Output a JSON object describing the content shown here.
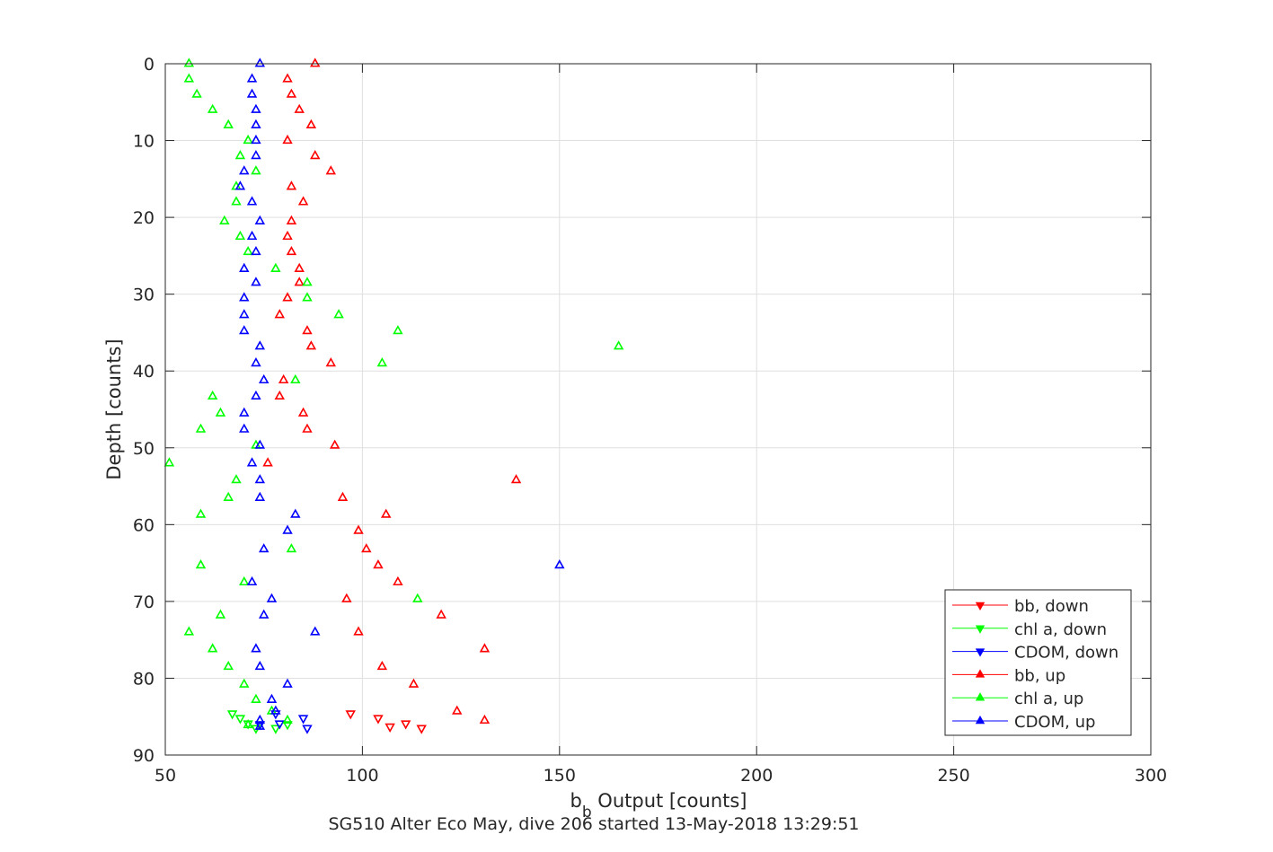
{
  "chart_data": {
    "type": "scatter",
    "title": "",
    "xlabel_main": "b",
    "xlabel_sub": "b",
    "xlabel_rest": " Output [counts]",
    "ylabel": "Depth [counts]",
    "caption": "SG510 Alter Eco May, dive 206 started 13-May-2018 13:29:51",
    "xlim": [
      50,
      300
    ],
    "ylim": [
      0,
      90
    ],
    "y_reversed": true,
    "grid": true,
    "legend_position": "bottom-right",
    "x_ticks": [
      "50",
      "100",
      "150",
      "200",
      "250",
      "300"
    ],
    "y_ticks": [
      "0",
      "10",
      "20",
      "30",
      "40",
      "50",
      "60",
      "70",
      "80",
      "90"
    ],
    "series": [
      {
        "name": "bb, down",
        "color": "#ff0000",
        "marker": "triangle-down",
        "points": [
          [
            97,
            84.6
          ],
          [
            104,
            85.2
          ],
          [
            111,
            85.9
          ],
          [
            107,
            86.3
          ],
          [
            115,
            86.5
          ]
        ]
      },
      {
        "name": "chl a, down",
        "color": "#00ff00",
        "marker": "triangle-down",
        "points": [
          [
            67,
            84.6
          ],
          [
            69,
            85.2
          ],
          [
            71,
            85.9
          ],
          [
            73,
            86.5
          ],
          [
            78,
            86.5
          ],
          [
            81,
            86
          ]
        ]
      },
      {
        "name": "CDOM, down",
        "color": "#0000ff",
        "marker": "triangle-down",
        "points": [
          [
            78,
            84.6
          ],
          [
            85,
            85.2
          ],
          [
            79,
            85.9
          ],
          [
            86,
            86.5
          ],
          [
            74,
            86
          ]
        ]
      },
      {
        "name": "bb, up",
        "color": "#ff0000",
        "marker": "triangle-up",
        "points": [
          [
            88,
            0
          ],
          [
            81,
            2
          ],
          [
            82,
            4
          ],
          [
            84,
            6
          ],
          [
            87,
            8
          ],
          [
            81,
            10
          ],
          [
            88,
            12
          ],
          [
            92,
            14
          ],
          [
            82,
            16
          ],
          [
            85,
            18
          ],
          [
            82,
            20.5
          ],
          [
            81,
            22.5
          ],
          [
            82,
            24.5
          ],
          [
            84,
            26.7
          ],
          [
            84,
            28.5
          ],
          [
            81,
            30.5
          ],
          [
            79,
            32.7
          ],
          [
            86,
            34.8
          ],
          [
            87,
            36.8
          ],
          [
            92,
            39
          ],
          [
            80,
            41.2
          ],
          [
            79,
            43.3
          ],
          [
            85,
            45.5
          ],
          [
            86,
            47.6
          ],
          [
            93,
            49.7
          ],
          [
            76,
            52
          ],
          [
            139,
            54.2
          ],
          [
            95,
            56.5
          ],
          [
            106,
            58.7
          ],
          [
            99,
            60.8
          ],
          [
            101,
            63.2
          ],
          [
            104,
            65.3
          ],
          [
            109,
            67.5
          ],
          [
            96,
            69.7
          ],
          [
            120,
            71.8
          ],
          [
            99,
            74
          ],
          [
            131,
            76.2
          ],
          [
            105,
            78.5
          ],
          [
            113,
            80.8
          ],
          [
            124,
            84.3
          ],
          [
            131,
            85.5
          ]
        ]
      },
      {
        "name": "chl a, up",
        "color": "#00ff00",
        "marker": "triangle-up",
        "points": [
          [
            56,
            0
          ],
          [
            56,
            2
          ],
          [
            58,
            4
          ],
          [
            62,
            6
          ],
          [
            66,
            8
          ],
          [
            71,
            10
          ],
          [
            69,
            12
          ],
          [
            73,
            14
          ],
          [
            68,
            16
          ],
          [
            68,
            18
          ],
          [
            65,
            20.5
          ],
          [
            69,
            22.5
          ],
          [
            71,
            24.5
          ],
          [
            78,
            26.7
          ],
          [
            86,
            28.5
          ],
          [
            86,
            30.5
          ],
          [
            94,
            32.7
          ],
          [
            109,
            34.8
          ],
          [
            165,
            36.8
          ],
          [
            105,
            39
          ],
          [
            83,
            41.2
          ],
          [
            62,
            43.3
          ],
          [
            64,
            45.5
          ],
          [
            59,
            47.6
          ],
          [
            73,
            49.7
          ],
          [
            51,
            52
          ],
          [
            68,
            54.2
          ],
          [
            66,
            56.5
          ],
          [
            59,
            58.7
          ],
          [
            82,
            63.2
          ],
          [
            59,
            65.3
          ],
          [
            70,
            67.5
          ],
          [
            114,
            69.7
          ],
          [
            64,
            71.8
          ],
          [
            56,
            74
          ],
          [
            62,
            76.2
          ],
          [
            66,
            78.5
          ],
          [
            70,
            80.8
          ],
          [
            73,
            82.8
          ],
          [
            77,
            84.3
          ],
          [
            81,
            85.5
          ],
          [
            71,
            86.1
          ]
        ]
      },
      {
        "name": "CDOM, up",
        "color": "#0000ff",
        "marker": "triangle-up",
        "points": [
          [
            74,
            0
          ],
          [
            72,
            2
          ],
          [
            72,
            4
          ],
          [
            73,
            6
          ],
          [
            73,
            8
          ],
          [
            73,
            10
          ],
          [
            73,
            12
          ],
          [
            70,
            14
          ],
          [
            69,
            16
          ],
          [
            72,
            18
          ],
          [
            74,
            20.5
          ],
          [
            72,
            22.5
          ],
          [
            73,
            24.5
          ],
          [
            70,
            26.7
          ],
          [
            73,
            28.5
          ],
          [
            70,
            30.5
          ],
          [
            70,
            32.7
          ],
          [
            70,
            34.8
          ],
          [
            74,
            36.8
          ],
          [
            73,
            39
          ],
          [
            75,
            41.2
          ],
          [
            73,
            43.3
          ],
          [
            70,
            45.5
          ],
          [
            70,
            47.6
          ],
          [
            74,
            49.7
          ],
          [
            72,
            52
          ],
          [
            74,
            54.2
          ],
          [
            74,
            56.5
          ],
          [
            83,
            58.7
          ],
          [
            81,
            60.8
          ],
          [
            75,
            63.2
          ],
          [
            150,
            65.3
          ],
          [
            72,
            67.5
          ],
          [
            77,
            69.7
          ],
          [
            75,
            71.8
          ],
          [
            88,
            74
          ],
          [
            73,
            76.2
          ],
          [
            74,
            78.5
          ],
          [
            81,
            80.8
          ],
          [
            77,
            82.8
          ],
          [
            78,
            84.3
          ],
          [
            74,
            85.5
          ],
          [
            74,
            86.3
          ]
        ]
      }
    ]
  }
}
